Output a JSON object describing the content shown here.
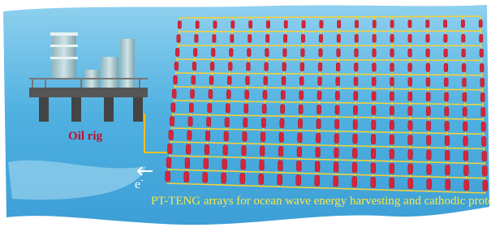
{
  "labels": {
    "oil_rig": "Oil rig",
    "electron": "e",
    "electron_sign": "-"
  },
  "caption": "PT-TENG arrays for ocean wave energy harvesting and cathodic protection"
}
